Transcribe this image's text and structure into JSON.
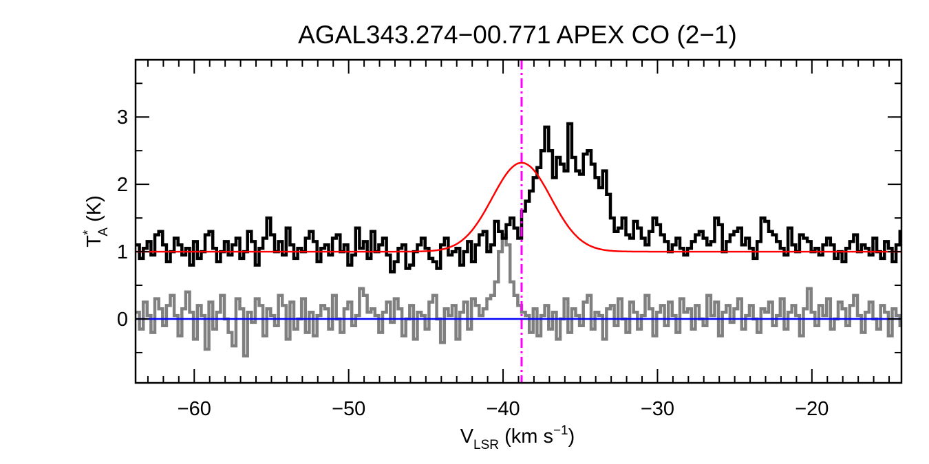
{
  "chart_data": {
    "type": "line",
    "title": "AGAL343.274−00.771   APEX CO (2−1)",
    "xlabel": {
      "main": "V",
      "sub": "LSR",
      "rest": " (km s",
      "sup": "−1",
      "end": ")"
    },
    "ylabel": {
      "main": "T",
      "sup": "*",
      "sub": "A",
      "rest": " (K)"
    },
    "xlim": [
      -63.8,
      -14.2
    ],
    "ylim": [
      -0.95,
      3.85
    ],
    "xticks": [
      -60,
      -50,
      -40,
      -30,
      -20
    ],
    "xtick_labels": [
      "−60",
      "−50",
      "−40",
      "−30",
      "−20"
    ],
    "yticks": [
      0,
      1,
      2,
      3
    ],
    "ytick_labels": [
      "0",
      "1",
      "2",
      "3"
    ],
    "grid": false,
    "series": [
      {
        "role": "spectrum",
        "color": "#000000",
        "step": true,
        "x_start": -63.8,
        "x_step": 0.25,
        "values": [
          1.1,
          0.9,
          1.05,
          1.15,
          0.95,
          1.25,
          1.3,
          1.1,
          0.85,
          1.0,
          1.2,
          1.1,
          0.95,
          1.05,
          0.8,
          1.15,
          0.9,
          1.0,
          1.25,
          1.3,
          1.05,
          0.85,
          1.0,
          1.15,
          0.95,
          1.1,
          1.2,
          0.9,
          1.0,
          1.3,
          1.15,
          0.8,
          1.05,
          1.2,
          1.5,
          1.25,
          1.0,
          1.15,
          0.95,
          1.35,
          1.1,
          0.9,
          1.05,
          1.0,
          1.2,
          1.3,
          1.15,
          0.85,
          1.05,
          1.1,
          0.95,
          1.2,
          1.25,
          1.0,
          1.1,
          0.8,
          0.95,
          1.35,
          1.05,
          1.15,
          0.9,
          1.3,
          1.0,
          1.1,
          1.2,
          0.95,
          0.7,
          0.85,
          1.05,
          1.1,
          0.75,
          0.8,
          1.0,
          1.1,
          1.2,
          1.05,
          0.9,
          0.85,
          0.75,
          1.1,
          1.2,
          0.95,
          1.0,
          1.05,
          0.8,
          1.0,
          1.15,
          0.85,
          1.1,
          1.25,
          1.3,
          1.0,
          1.1,
          1.45,
          1.3,
          1.2,
          1.4,
          1.5,
          1.35,
          1.2,
          1.6,
          1.75,
          1.9,
          2.1,
          2.25,
          2.5,
          2.85,
          2.5,
          2.1,
          2.4,
          2.3,
          2.2,
          2.9,
          2.4,
          2.2,
          2.15,
          2.45,
          2.5,
          2.3,
          2.1,
          1.95,
          2.2,
          1.85,
          1.5,
          1.3,
          1.35,
          1.5,
          1.25,
          1.2,
          1.45,
          1.35,
          1.2,
          1.1,
          1.3,
          1.5,
          1.4,
          1.25,
          1.15,
          1.0,
          1.1,
          1.2,
          1.05,
          0.95,
          1.05,
          1.15,
          1.25,
          1.3,
          1.2,
          1.1,
          1.15,
          1.5,
          1.4,
          1.0,
          1.15,
          1.25,
          1.3,
          1.35,
          1.1,
          1.2,
          1.05,
          0.9,
          1.15,
          1.5,
          1.45,
          1.3,
          1.25,
          1.15,
          1.05,
          0.95,
          1.35,
          1.1,
          1.0,
          1.25,
          1.2,
          1.15,
          1.0,
          1.05,
          0.95,
          1.1,
          1.2,
          1.1,
          0.9,
          1.0,
          0.85,
          1.05,
          1.15,
          1.25,
          1.0,
          1.1,
          1.05,
          0.95,
          1.2,
          1.0,
          0.9,
          1.15,
          1.05,
          0.85,
          1.1,
          1.3,
          1.0,
          1.05,
          0.95,
          1.1,
          0.8,
          0.95,
          1.05,
          0.9,
          0.85,
          1.0
        ]
      },
      {
        "role": "gaussian-fit",
        "color": "#ff0000",
        "baseline": 1.0,
        "amplitude": 1.32,
        "center": -38.8,
        "sigma": 1.9
      },
      {
        "role": "residual",
        "color": "#808080",
        "step": true,
        "x_start": -63.8,
        "x_step": 0.25,
        "values": [
          0.1,
          -0.15,
          0.25,
          0.05,
          -0.2,
          0.3,
          0.15,
          -0.1,
          0.2,
          0.35,
          0.05,
          -0.25,
          0.15,
          0.4,
          0.1,
          -0.3,
          0.2,
          0.05,
          -0.45,
          0.25,
          -0.15,
          0.1,
          0.35,
          0.0,
          -0.2,
          -0.4,
          0.3,
          0.15,
          -0.55,
          0.1,
          -0.05,
          0.3,
          0.2,
          -0.25,
          0.15,
          0.05,
          -0.1,
          0.35,
          0.2,
          -0.3,
          0.25,
          -0.15,
          0.0,
          0.3,
          -0.2,
          0.1,
          -0.25,
          0.05,
          0.2,
          0.15,
          -0.15,
          0.35,
          0.0,
          -0.2,
          0.15,
          0.25,
          -0.1,
          0.05,
          0.45,
          0.35,
          0.1,
          0.15,
          0.05,
          -0.2,
          0.1,
          0.25,
          -0.05,
          0.3,
          0.15,
          -0.25,
          0.0,
          0.2,
          -0.3,
          0.1,
          0.05,
          -0.15,
          0.25,
          0.35,
          0.0,
          -0.35,
          0.15,
          0.05,
          0.2,
          -0.3,
          0.1,
          0.25,
          -0.15,
          0.3,
          0.2,
          0.05,
          0.15,
          0.3,
          0.35,
          0.55,
          1.0,
          1.25,
          1.1,
          0.55,
          0.35,
          0.2,
          0.1,
          0.05,
          -0.2,
          0.15,
          -0.25,
          0.05,
          0.2,
          -0.15,
          0.1,
          -0.3,
          0.0,
          0.3,
          -0.2,
          0.15,
          0.05,
          -0.1,
          0.25,
          0.35,
          -0.15,
          0.1,
          0.05,
          -0.3,
          0.15,
          0.2,
          -0.1,
          0.3,
          0.0,
          -0.2,
          0.25,
          0.1,
          -0.15,
          0.05,
          0.35,
          0.15,
          -0.25,
          0.1,
          0.2,
          -0.1,
          0.25,
          0.05,
          -0.2,
          0.3,
          0.1,
          0.15,
          -0.15,
          0.2,
          0.0,
          -0.1,
          0.35,
          0.05,
          0.25,
          -0.25,
          0.1,
          0.2,
          -0.05,
          0.15,
          0.3,
          -0.15,
          0.05,
          0.2,
          0.0,
          -0.2,
          0.15,
          0.1,
          0.25,
          -0.1,
          0.05,
          0.3,
          -0.15,
          0.1,
          0.2,
          0.05,
          -0.25,
          0.15,
          0.45,
          0.1,
          -0.1,
          0.2,
          0.05,
          0.3,
          -0.15,
          0.0,
          0.25,
          0.15,
          -0.1,
          0.2,
          0.35,
          0.05,
          -0.2,
          0.1,
          0.25,
          0.0,
          -0.15,
          0.2,
          0.1,
          -0.25,
          0.15,
          0.05,
          -0.1,
          0.2,
          0.0,
          -0.2,
          0.1,
          -0.05,
          -0.25
        ]
      },
      {
        "role": "zero-line",
        "color": "#0000ff",
        "y": 0
      },
      {
        "role": "vlsr-marker",
        "color": "#ff00ff",
        "x": -38.8,
        "dash": "dash-dot"
      }
    ]
  }
}
